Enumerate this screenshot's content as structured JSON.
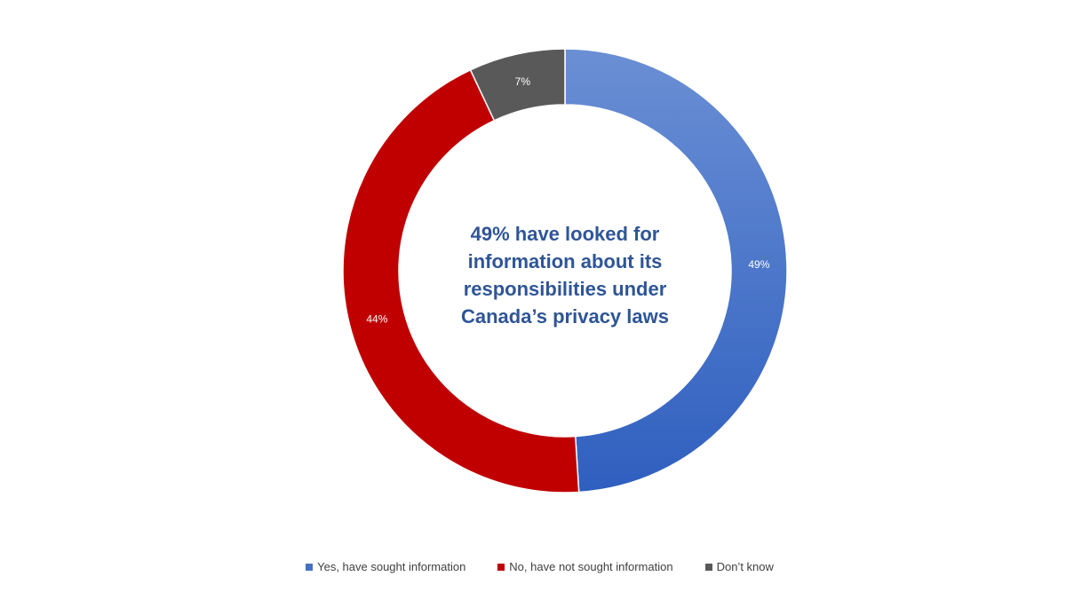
{
  "chart_data": {
    "type": "pie",
    "variant": "donut",
    "center_label_lines": [
      "49% have looked for",
      "information about its",
      "responsibilities under",
      "Canada’s privacy laws"
    ],
    "slices": [
      {
        "name": "Yes, have sought information",
        "value": 49,
        "label": "49%",
        "color": "#4472c4"
      },
      {
        "name": "No, have not sought information",
        "value": 44,
        "label": "44%",
        "color": "#c00000"
      },
      {
        "name": "Don’t know",
        "value": 7,
        "label": "7%",
        "color": "#595959"
      }
    ],
    "legend_position": "bottom"
  }
}
